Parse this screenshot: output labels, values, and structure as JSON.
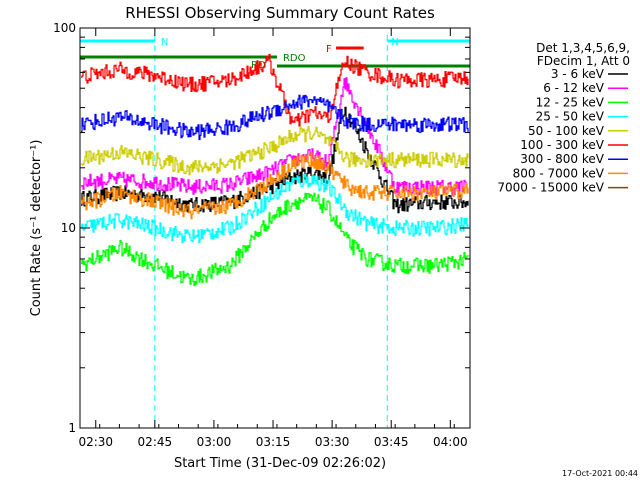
{
  "chart_data": {
    "type": "line",
    "title": "RHESSI Observing Summary Count Rates",
    "xlabel": "Start Time (31-Dec-09 02:26:02)",
    "ylabel": "Count Rate (s⁻¹ detector⁻¹)",
    "y_scale": "log",
    "ylim": [
      1,
      100
    ],
    "xlim_minutes_after_start": [
      0,
      99
    ],
    "x_ticks": [
      "02:30",
      "02:45",
      "03:00",
      "03:15",
      "03:30",
      "03:45",
      "04:00"
    ],
    "y_ticks": [
      "1",
      "10",
      "100"
    ],
    "legend_header": [
      "Det 1,3,4,5,6,9,",
      "FDecim 1, Att 0"
    ],
    "legend_placement": "right",
    "series": [
      {
        "name": "3 - 6 keV",
        "color": "#000000",
        "x": [
          0,
          10,
          19,
          28,
          38,
          48,
          54,
          59,
          63,
          67,
          73,
          80,
          90,
          99
        ],
        "y": [
          14,
          15,
          14.5,
          13,
          13.5,
          16,
          18,
          19,
          18,
          40,
          24,
          13,
          13.5,
          13.5
        ]
      },
      {
        "name": "6 - 12 keV",
        "color": "#ff00ff",
        "x": [
          0,
          10,
          19,
          28,
          38,
          48,
          54,
          59,
          63,
          67,
          73,
          80,
          90,
          99
        ],
        "y": [
          17,
          17.5,
          17,
          16,
          16.5,
          19,
          22,
          23,
          21,
          55,
          32,
          16,
          16,
          16
        ]
      },
      {
        "name": "12 - 25 keV",
        "color": "#00ff00",
        "x": [
          0,
          10,
          19,
          28,
          38,
          48,
          54,
          59,
          63,
          68,
          73,
          80,
          90,
          99
        ],
        "y": [
          6.5,
          8,
          6.5,
          5.5,
          6.5,
          11,
          13.5,
          14,
          12.5,
          8.5,
          7,
          6.5,
          6.5,
          7
        ]
      },
      {
        "name": "25 - 50 keV",
        "color": "#00ffff",
        "x": [
          0,
          10,
          19,
          28,
          38,
          48,
          54,
          59,
          63,
          68,
          73,
          80,
          90,
          99
        ],
        "y": [
          10,
          11,
          10,
          9,
          10,
          14,
          17,
          17.5,
          16,
          12,
          10.5,
          10,
          10,
          10.5
        ]
      },
      {
        "name": "50 - 100 keV",
        "color": "#cccc00",
        "x": [
          0,
          10,
          19,
          28,
          38,
          48,
          54,
          59,
          63,
          68,
          73,
          80,
          90,
          99
        ],
        "y": [
          22,
          24,
          22,
          20,
          21,
          25,
          29,
          30,
          27,
          22,
          22,
          22,
          22,
          22
        ]
      },
      {
        "name": "100 - 300 keV",
        "color": "#ff0000",
        "x": [
          0,
          10,
          19,
          28,
          38,
          48,
          54,
          59,
          63,
          67,
          73,
          80,
          90,
          99
        ],
        "y": [
          57,
          62,
          58,
          52,
          55,
          68,
          33,
          38,
          35,
          68,
          60,
          55,
          55,
          57
        ]
      },
      {
        "name": "300 - 800 keV",
        "color": "#0000ff",
        "x": [
          0,
          10,
          19,
          28,
          38,
          48,
          54,
          59,
          63,
          68,
          73,
          80,
          90,
          99
        ],
        "y": [
          33,
          36,
          33,
          30,
          32,
          38,
          42,
          44,
          40,
          34,
          33,
          33,
          33,
          33
        ]
      },
      {
        "name": "800 - 7000 keV",
        "color": "#ff8800",
        "x": [
          0,
          10,
          19,
          28,
          38,
          48,
          54,
          59,
          63,
          68,
          73,
          80,
          90,
          99
        ],
        "y": [
          13,
          15,
          13.5,
          12,
          13,
          17,
          21,
          22,
          20,
          16,
          15,
          15,
          15,
          15.5
        ]
      },
      {
        "name": "7000 - 15000 keV",
        "color": "#884400",
        "x": [],
        "y": []
      }
    ],
    "annotations": [
      {
        "label": "N",
        "color": "#00ffff",
        "x_start": 0,
        "x_end": 19
      },
      {
        "label": "N",
        "color": "#00ffff",
        "x_start": 78,
        "x_end": 99
      },
      {
        "label": "RDO",
        "color": "#008000",
        "x_start": 0,
        "x_end": 50
      },
      {
        "label": "RD",
        "color": "#008000",
        "x_start": 50,
        "x_end": 99
      },
      {
        "label": "F",
        "color": "#ff0000",
        "x_start": 65,
        "x_end": 72
      }
    ],
    "grid": false
  },
  "footer": {
    "timestamp": "17-Oct-2021 00:44"
  }
}
